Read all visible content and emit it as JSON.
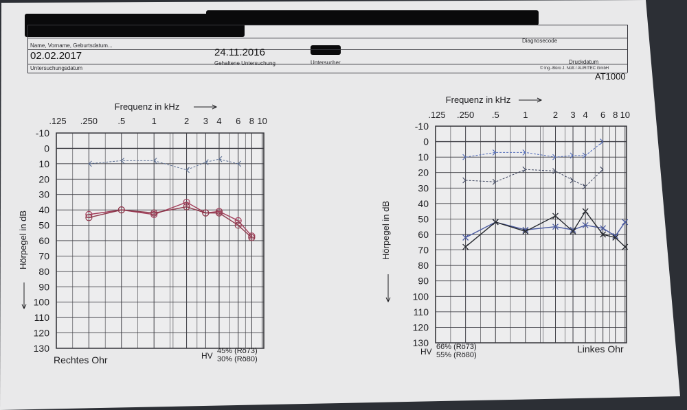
{
  "header": {
    "name_label": "Name, Vorname, Geburtsdatum...",
    "diagnose_label": "Diagnosecode",
    "exam_date": "02.02.2017",
    "exam_date_label": "Untersuchungsdatum",
    "held_exam_date": "24.11.2016",
    "held_exam_label": "Gehaltene Untersuchung",
    "examiner_label": "Untersucher",
    "print_date_label": "Druckdatum",
    "copyright": "© Ing.-Büro J. Nüß / AURITEC GmbH",
    "device": "AT1000"
  },
  "chart_data": [
    {
      "type": "line",
      "title": "Frequenz in kHz",
      "ear": "Rechtes Ohr",
      "ylabel": "Hörpegel in dB",
      "xticks": [
        ".125",
        ".250",
        ".5",
        "1",
        "2",
        "3",
        "4",
        "6",
        "8",
        "10"
      ],
      "yticks": [
        "-10",
        "0",
        "10",
        "20",
        "30",
        "40",
        "50",
        "60",
        "70",
        "80",
        "90",
        "100",
        "110",
        "120",
        "130"
      ],
      "ylim": [
        -10,
        130
      ],
      "hv_label": "HV",
      "hv_lines": [
        "45% (Rö73)",
        "30% (Rö80)"
      ],
      "series": [
        {
          "kind": "bone",
          "x": [
            0.25,
            0.5,
            1,
            2,
            3,
            4,
            6
          ],
          "y": [
            10,
            8,
            8,
            14,
            9,
            7,
            10
          ]
        },
        {
          "kind": "air_a",
          "x": [
            0.25,
            0.5,
            1,
            2,
            3,
            4,
            6,
            8
          ],
          "y": [
            43,
            40,
            43,
            35,
            42,
            41,
            47,
            57
          ]
        },
        {
          "kind": "air_b",
          "x": [
            0.25,
            0.5,
            1,
            2,
            3,
            4,
            6,
            8
          ],
          "y": [
            45,
            40,
            42,
            38,
            42,
            42,
            50,
            58
          ]
        }
      ]
    },
    {
      "type": "line",
      "title": "Frequenz in kHz",
      "ear": "Linkes Ohr",
      "ylabel": "Hörpegel in dB",
      "xticks": [
        ".125",
        ".250",
        ".5",
        "1",
        "2",
        "3",
        "4",
        "6",
        "8",
        "10"
      ],
      "yticks": [
        "-10",
        "0",
        "10",
        "20",
        "30",
        "40",
        "50",
        "60",
        "70",
        "80",
        "90",
        "100",
        "110",
        "120",
        "130"
      ],
      "ylim": [
        -10,
        130
      ],
      "hv_label": "HV",
      "hv_lines": [
        "66% (Rö73)",
        "55% (Rö80)"
      ],
      "series": [
        {
          "kind": "bone_a",
          "x": [
            0.25,
            0.5,
            1,
            2,
            3,
            4,
            6
          ],
          "y": [
            10,
            7,
            7,
            10,
            9,
            9,
            0
          ]
        },
        {
          "kind": "bone_b",
          "x": [
            0.25,
            0.5,
            1,
            2,
            3,
            4,
            6
          ],
          "y": [
            25,
            26,
            18,
            19,
            25,
            29,
            18
          ]
        },
        {
          "kind": "air_a",
          "x": [
            0.25,
            0.5,
            1,
            2,
            3,
            4,
            6,
            8,
            10
          ],
          "y": [
            62,
            52,
            57,
            55,
            57,
            54,
            56,
            61,
            52
          ]
        },
        {
          "kind": "air_b",
          "x": [
            0.25,
            0.5,
            1,
            2,
            3,
            4,
            6,
            8,
            10
          ],
          "y": [
            68,
            52,
            58,
            48,
            58,
            45,
            60,
            62,
            68
          ]
        }
      ]
    }
  ]
}
